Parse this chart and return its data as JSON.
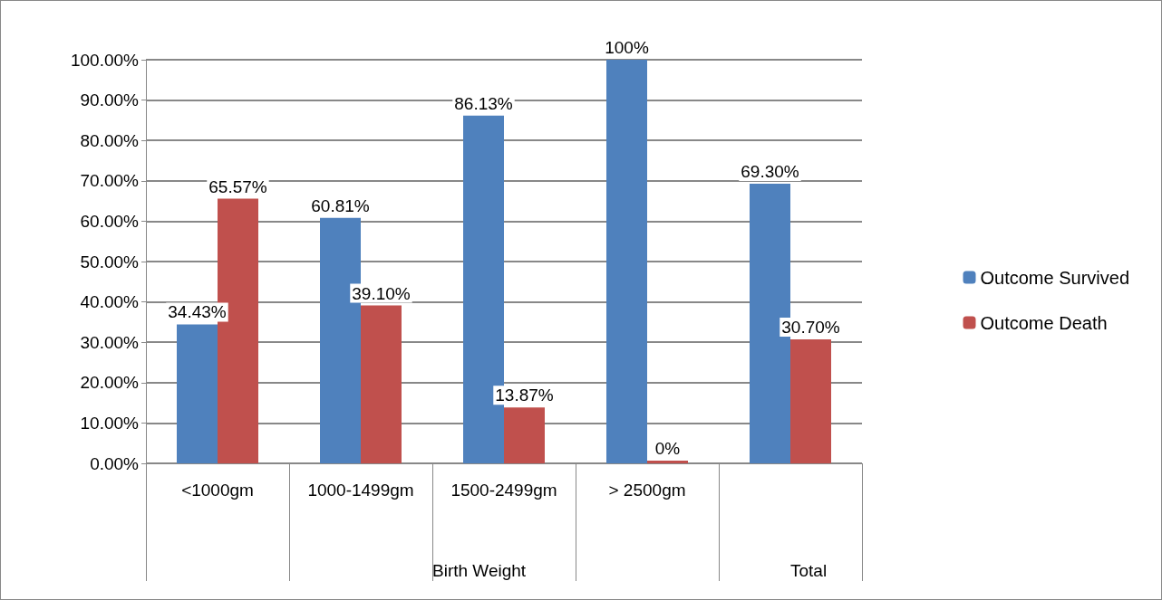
{
  "chart_data": {
    "type": "bar",
    "categories": [
      "<1000gm",
      "1000-1499gm",
      "1500-2499gm",
      "> 2500gm",
      null
    ],
    "series": [
      {
        "name": "Outcome Survived",
        "color": "#4f81bd",
        "values": [
          34.43,
          60.81,
          86.13,
          100,
          69.3
        ],
        "value_labels": [
          "34.43%",
          "60.81%",
          "86.13%",
          "100%",
          "69.30%"
        ]
      },
      {
        "name": "Outcome Death",
        "color": "#c0504d",
        "values": [
          65.57,
          39.1,
          13.87,
          0,
          30.7
        ],
        "value_labels": [
          "65.57%",
          "39.10%",
          "13.87%",
          "0%",
          "30.70%"
        ]
      }
    ],
    "ylim": [
      0,
      100
    ],
    "yticks": [
      {
        "value": 0,
        "label": "0.00%"
      },
      {
        "value": 10,
        "label": "10.00%"
      },
      {
        "value": 20,
        "label": "20.00%"
      },
      {
        "value": 30,
        "label": "30.00%"
      },
      {
        "value": 40,
        "label": "40.00%"
      },
      {
        "value": 50,
        "label": "50.00%"
      },
      {
        "value": 60,
        "label": "60.00%"
      },
      {
        "value": 70,
        "label": "70.00%"
      },
      {
        "value": 80,
        "label": "80.00%"
      },
      {
        "value": 90,
        "label": "90.00%"
      },
      {
        "value": 100,
        "label": "100.00%"
      }
    ],
    "annotations": [
      "Birth Weight",
      "Total"
    ],
    "grid": "y",
    "legend": "right"
  }
}
